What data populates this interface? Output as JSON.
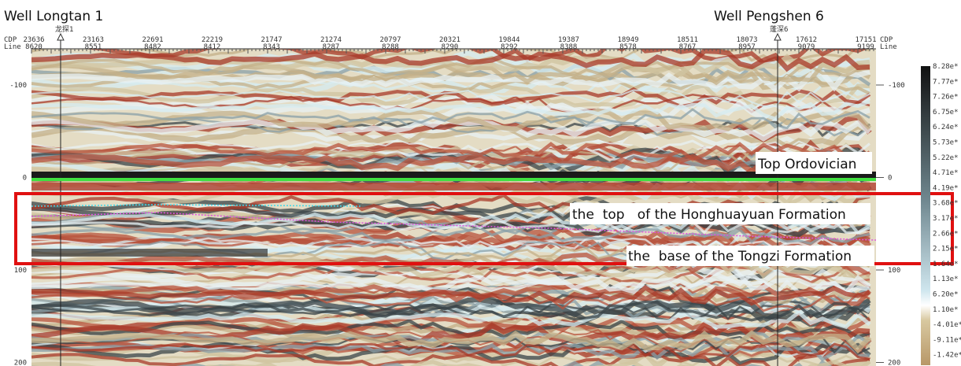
{
  "wells": [
    {
      "name": "Well Longtan 1",
      "marker": "龙探1"
    },
    {
      "name": "Well Pengshen 6",
      "marker": "蓬深6"
    }
  ],
  "top_axis": {
    "row_labels_left": [
      "CDP",
      "Line"
    ],
    "row_labels_right": [
      "CDP",
      "Line"
    ],
    "columns": [
      [
        "23636",
        "8620"
      ],
      [
        "23163",
        "8551"
      ],
      [
        "22691",
        "8482"
      ],
      [
        "22219",
        "8412"
      ],
      [
        "21747",
        "8343"
      ],
      [
        "21274",
        "8287"
      ],
      [
        "20797",
        "8288"
      ],
      [
        "20321",
        "8290"
      ],
      [
        "19844",
        "8292"
      ],
      [
        "19387",
        "8388"
      ],
      [
        "18949",
        "8578"
      ],
      [
        "18511",
        "8767"
      ],
      [
        "18073",
        "8957"
      ],
      [
        "17612",
        "9079"
      ],
      [
        "17151",
        "9199"
      ]
    ]
  },
  "y_ticks": [
    "-100",
    "0",
    "100",
    "200"
  ],
  "colorbar": [
    "8.28e*",
    "7.77e*",
    "7.26e*",
    "6.75e*",
    "6.24e*",
    "5.73e*",
    "5.22e*",
    "4.71e*",
    "4.19e*",
    "3.68e*",
    "3.17e*",
    "2.66e*",
    "2.15e*",
    "1.64e*",
    "1.13e*",
    "6.20e*",
    "1.10e*",
    "-4.01e*",
    "-9.11e*",
    "-1.42e*"
  ],
  "annotations": [
    "Top Ordovician",
    "the  top   of the Honghuayuan Formation",
    "the  base of the Tongzi Formation"
  ]
}
